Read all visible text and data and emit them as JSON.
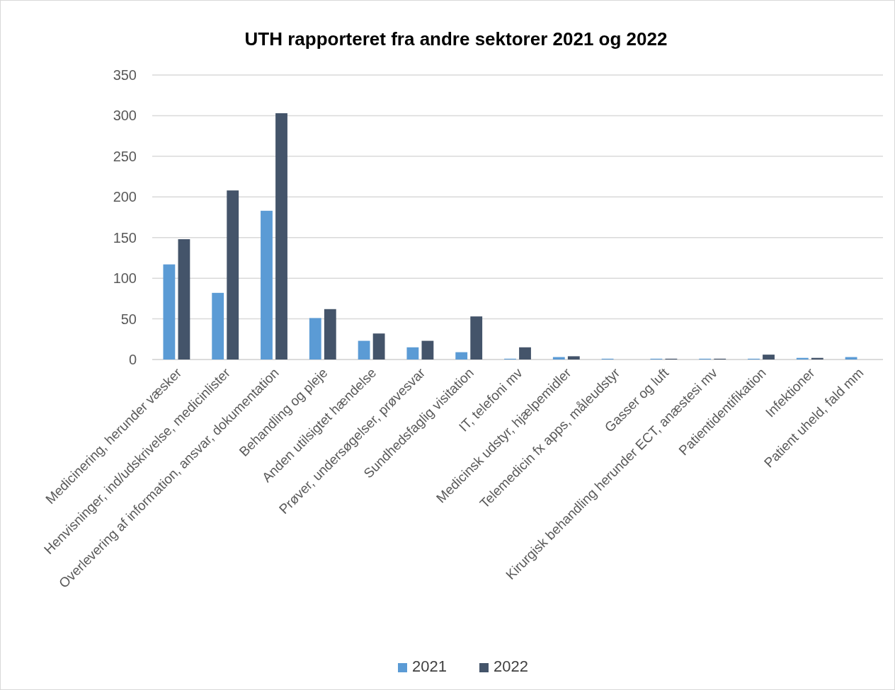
{
  "chart_data": {
    "type": "bar",
    "title": "UTH rapporteret fra andre sektorer 2021 og 2022",
    "categories": [
      "Medicinering, herunder væsker",
      "Henvisninger, ind/udskrivelse, medicinlister",
      "Overlevering af information, ansvar, dokumentation",
      "Behandling og pleje",
      "Anden utilsigtet hændelse",
      "Prøver, undersøgelser, prøvesvar",
      "Sundhedsfaglig visitation",
      "IT, telefoni mv",
      "Medicinsk udstyr, hjælpemidler",
      "Telemedicin fx apps, måleudstyr",
      "Gasser og luft",
      "Kirurgisk behandling herunder ECT, anæstesi mv",
      "Patientidentifikation",
      "Infektioner",
      "Patient uheld, fald mm"
    ],
    "series": [
      {
        "name": "2021",
        "color": "#5b9bd5",
        "values": [
          117,
          82,
          183,
          51,
          23,
          15,
          9,
          1,
          3,
          1,
          1,
          1,
          1,
          2,
          3
        ]
      },
      {
        "name": "2022",
        "color": "#44546a",
        "values": [
          148,
          208,
          303,
          62,
          32,
          23,
          53,
          15,
          4,
          0,
          1,
          1,
          6,
          2,
          0
        ]
      }
    ],
    "ylim": [
      0,
      350
    ],
    "yticks": [
      0,
      50,
      100,
      150,
      200,
      250,
      300,
      350
    ],
    "grid": "y",
    "legend": "bottom"
  }
}
